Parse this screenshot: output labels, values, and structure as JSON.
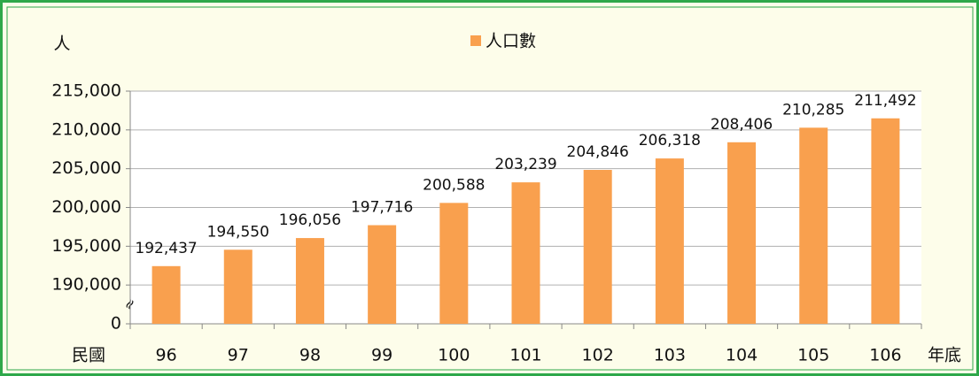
{
  "chart_data": {
    "type": "bar",
    "y_label": "人",
    "x_label_left": "民國",
    "x_label_right": "年底",
    "categories": [
      "96",
      "97",
      "98",
      "99",
      "100",
      "101",
      "102",
      "103",
      "104",
      "105",
      "106"
    ],
    "series": [
      {
        "name": "人口數",
        "color": "#f9a04e",
        "values": [
          192437,
          194550,
          196056,
          197716,
          200588,
          203239,
          204846,
          206318,
          208406,
          210285,
          211492
        ],
        "value_labels": [
          "192,437",
          "194,550",
          "196,056",
          "197,716",
          "200,588",
          "203,239",
          "204,846",
          "206,318",
          "208,406",
          "210,285",
          "211,492"
        ]
      }
    ],
    "ylim": [
      185000,
      215000
    ],
    "axis_break": true,
    "yticks": [
      0,
      {
        "value": 190000,
        "label": "190,000"
      },
      {
        "value": 195000,
        "label": "195,000"
      },
      {
        "value": 200000,
        "label": "200,000"
      },
      {
        "value": 205000,
        "label": "205,000"
      },
      {
        "value": 210000,
        "label": "210,000"
      },
      {
        "value": 215000,
        "label": "215,000"
      }
    ],
    "grid": true,
    "legend": "top"
  }
}
